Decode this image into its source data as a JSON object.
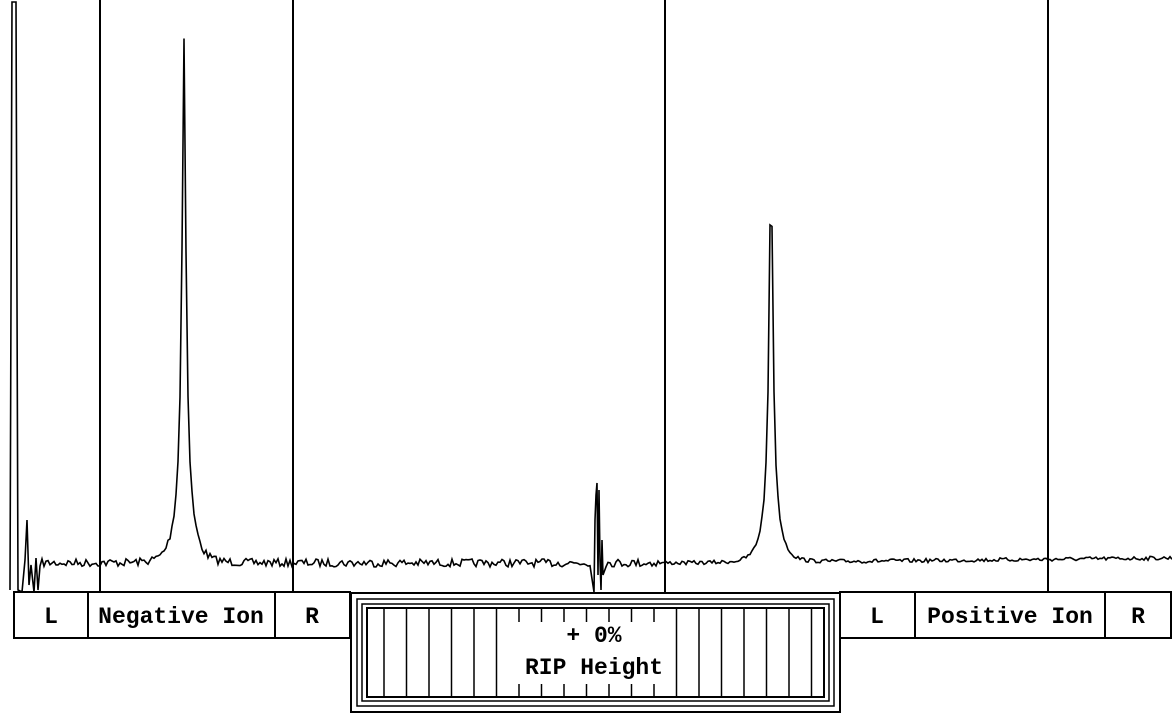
{
  "negative_panel": {
    "left_button": "L",
    "title": "Negative Ion",
    "right_button": "R"
  },
  "gauge": {
    "value": "+  0%",
    "label": "RIP Height"
  },
  "positive_panel": {
    "left_button": "L",
    "title": "Positive Ion",
    "right_button": "R"
  }
}
